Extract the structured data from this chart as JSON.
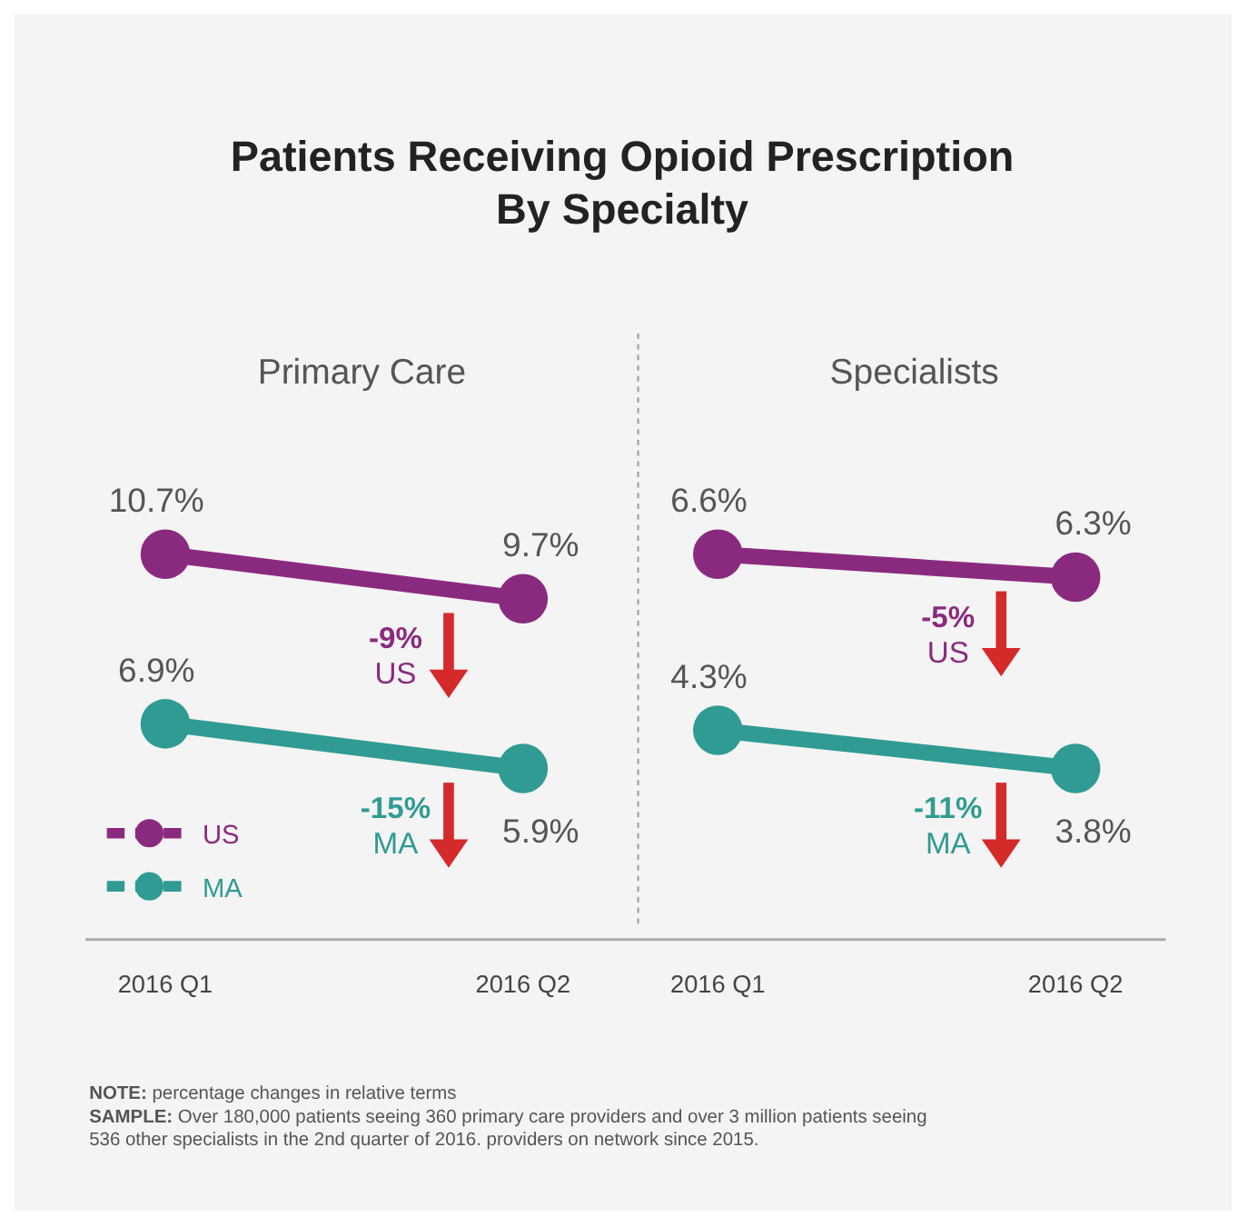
{
  "chart_data": [
    {
      "type": "line",
      "title": "Patients Receiving Opioid Prescription By Specialty",
      "subtitle": "Primary Care",
      "categories": [
        "2016 Q1",
        "2016 Q2"
      ],
      "series": [
        {
          "name": "US",
          "color": "#8a2a7f",
          "values": [
            10.7,
            9.7
          ],
          "value_labels": [
            "10.7%",
            "9.7%"
          ]
        },
        {
          "name": "MA",
          "color": "#2f9b93",
          "values": [
            6.9,
            5.9
          ],
          "value_labels": [
            "6.9%",
            "5.9%"
          ]
        }
      ],
      "marker": "circle",
      "tick_labels": "x",
      "legend": "bottom left",
      "annotations": [
        "-9%",
        "-15%",
        "NOTE: percentage changes in relative terms",
        "SAMPLE: Over 180,000 patients seeing 360 primary care providers and over 3 million patients seeing 536 other specialists in the 2nd quarter of 2016. providers on network since 2015."
      ]
    },
    {
      "type": "line",
      "subtitle": "Specialists",
      "categories": [
        "2016 Q1",
        "2016 Q2"
      ],
      "series": [
        {
          "name": "US",
          "color": "#8a2a7f",
          "values": [
            6.6,
            6.3
          ],
          "value_labels": [
            "6.6%",
            "6.3%"
          ]
        },
        {
          "name": "MA",
          "color": "#2f9b93",
          "values": [
            4.3,
            3.8
          ],
          "value_labels": [
            "4.3%",
            "3.8%"
          ]
        }
      ],
      "marker": "circle",
      "tick_labels": "x",
      "legend": false,
      "annotations": [
        "-5%",
        "-11%"
      ]
    }
  ]
}
